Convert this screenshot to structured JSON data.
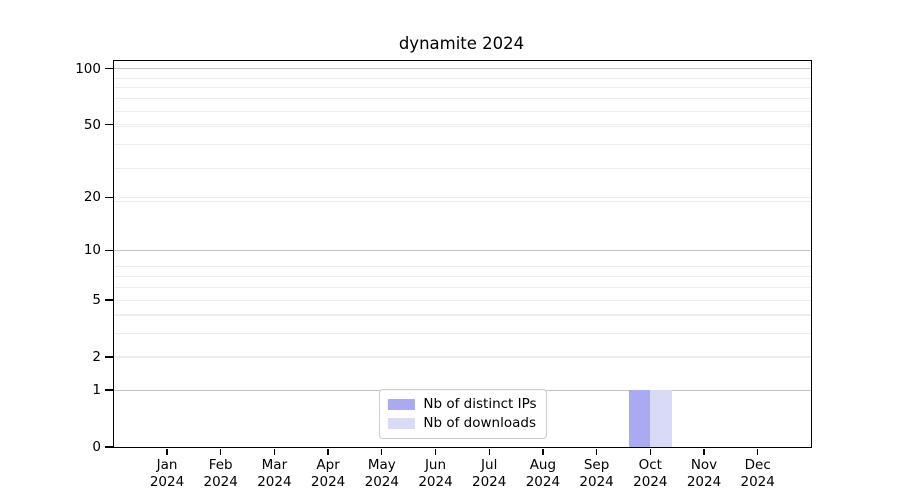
{
  "title": "dynamite 2024",
  "chart_data": {
    "type": "bar",
    "title": "dynamite 2024",
    "categories": [
      "Jan 2024",
      "Feb 2024",
      "Mar 2024",
      "Apr 2024",
      "May 2024",
      "Jun 2024",
      "Jul 2024",
      "Aug 2024",
      "Sep 2024",
      "Oct 2024",
      "Nov 2024",
      "Dec 2024"
    ],
    "series": [
      {
        "name": "Nb of distinct IPs",
        "color": "#aaaaf2",
        "values": [
          0,
          0,
          0,
          0,
          0,
          0,
          0,
          0,
          0,
          1,
          0,
          0
        ]
      },
      {
        "name": "Nb of downloads",
        "color": "#d9d9f8",
        "values": [
          0,
          0,
          0,
          0,
          0,
          0,
          0,
          0,
          0,
          1,
          0,
          0
        ]
      }
    ],
    "xlabel": "",
    "ylabel": "",
    "yticks": [
      0,
      1,
      2,
      5,
      10,
      20,
      50,
      100
    ],
    "ylim": [
      0,
      110
    ],
    "yscale": "log1p",
    "grid": "horizontal, major and minor",
    "legend_position": "lower center"
  },
  "legend": {
    "items": [
      {
        "label": "Nb of distinct IPs",
        "color": "#aaaaf2"
      },
      {
        "label": "Nb of downloads",
        "color": "#d9d9f8"
      }
    ]
  },
  "colors": {
    "axis": "#000000",
    "major_grid": "#c3c3c3",
    "minor_grid": "#ededed",
    "background": "#ffffff"
  }
}
